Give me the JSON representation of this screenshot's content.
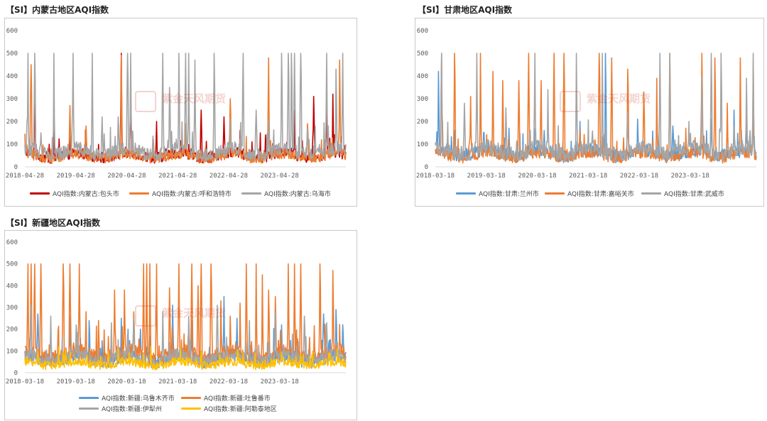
{
  "watermark": {
    "text": "紫金天风期货",
    "seal": "紫金"
  },
  "colors": {
    "red": "#c00000",
    "orange": "#ed7d31",
    "gray": "#a5a5a5",
    "blue": "#5b9bd5",
    "yellow": "#ffc000",
    "axis": "#d9d9d9"
  },
  "chart_data": [
    {
      "type": "line",
      "title": "【SI】内蒙古地区AQI指数",
      "ylim": [
        0,
        600
      ],
      "yticks": [
        "0",
        "100",
        "200",
        "300",
        "400",
        "500",
        "600"
      ],
      "xticks": [
        "2018-04-28",
        "2019-04-28",
        "2020-04-28",
        "2021-04-28",
        "2022-04-28",
        "2023-04-28"
      ],
      "x_range": [
        "2018-04-28",
        "2024-07-31"
      ],
      "grid": false,
      "legend_position": "bottom",
      "series": [
        {
          "name": "AQI指数:内蒙古:包头市",
          "color": "#c00000",
          "baseline": 55,
          "spikes": [
            [
              0.03,
              380
            ],
            [
              0.09,
              170
            ],
            [
              0.3,
              500
            ],
            [
              0.33,
              280
            ],
            [
              0.41,
              200
            ],
            [
              0.55,
              250
            ],
            [
              0.62,
              220
            ],
            [
              0.67,
              160
            ],
            [
              0.75,
              140
            ],
            [
              0.84,
              250
            ],
            [
              0.9,
              310
            ],
            [
              0.94,
              270
            ],
            [
              0.96,
              320
            ]
          ]
        },
        {
          "name": "AQI指数:内蒙古:呼和浩特市",
          "color": "#ed7d31",
          "baseline": 50,
          "spikes": [
            [
              0.02,
              450
            ],
            [
              0.14,
              270
            ],
            [
              0.19,
              180
            ],
            [
              0.3,
              490
            ],
            [
              0.4,
              120
            ],
            [
              0.5,
              190
            ],
            [
              0.64,
              300
            ],
            [
              0.76,
              480
            ],
            [
              0.88,
              190
            ],
            [
              0.98,
              470
            ]
          ]
        },
        {
          "name": "AQI指数:内蒙古:乌海市",
          "color": "#a5a5a5",
          "baseline": 70,
          "spikes": [
            [
              0.01,
              500
            ],
            [
              0.03,
              500
            ],
            [
              0.05,
              150
            ],
            [
              0.09,
              500
            ],
            [
              0.15,
              500
            ],
            [
              0.21,
              500
            ],
            [
              0.24,
              220
            ],
            [
              0.29,
              220
            ],
            [
              0.32,
              500
            ],
            [
              0.33,
              500
            ],
            [
              0.43,
              500
            ],
            [
              0.45,
              350
            ],
            [
              0.48,
              500
            ],
            [
              0.5,
              500
            ],
            [
              0.51,
              500
            ],
            [
              0.53,
              470
            ],
            [
              0.59,
              500
            ],
            [
              0.64,
              210
            ],
            [
              0.68,
              500
            ],
            [
              0.72,
              250
            ],
            [
              0.76,
              200
            ],
            [
              0.8,
              500
            ],
            [
              0.82,
              500
            ],
            [
              0.83,
              500
            ],
            [
              0.84,
              500
            ],
            [
              0.86,
              500
            ],
            [
              0.88,
              170
            ],
            [
              0.94,
              500
            ],
            [
              0.97,
              430
            ],
            [
              0.99,
              500
            ]
          ]
        }
      ]
    },
    {
      "type": "line",
      "title": "【SI】甘肃地区AQI指数",
      "ylim": [
        0,
        600
      ],
      "yticks": [
        "0",
        "100",
        "200",
        "300",
        "400",
        "500",
        "600"
      ],
      "xticks": [
        "2018-03-18",
        "2019-03-18",
        "2020-03-18",
        "2021-03-18",
        "2022-03-18",
        "2023-03-18"
      ],
      "x_range": [
        "2018-03-18",
        "2024-07-31"
      ],
      "grid": false,
      "legend_position": "bottom",
      "series": [
        {
          "name": "AQI指数:甘肃:兰州市",
          "color": "#5b9bd5",
          "baseline": 65,
          "spikes": [
            [
              0.01,
              420
            ],
            [
              0.06,
              160
            ],
            [
              0.15,
              150
            ],
            [
              0.23,
              170
            ],
            [
              0.34,
              160
            ],
            [
              0.45,
              200
            ],
            [
              0.53,
              500
            ],
            [
              0.63,
              210
            ],
            [
              0.74,
              180
            ],
            [
              0.86,
              210
            ],
            [
              0.93,
              250
            ],
            [
              0.97,
              190
            ],
            [
              0.99,
              180
            ]
          ]
        },
        {
          "name": "AQI指数:甘肃:嘉峪关市",
          "color": "#ed7d31",
          "baseline": 55,
          "spikes": [
            [
              0.02,
              500
            ],
            [
              0.06,
              500
            ],
            [
              0.11,
              310
            ],
            [
              0.14,
              500
            ],
            [
              0.18,
              420
            ],
            [
              0.21,
              380
            ],
            [
              0.26,
              380
            ],
            [
              0.29,
              500
            ],
            [
              0.33,
              380
            ],
            [
              0.37,
              500
            ],
            [
              0.4,
              500
            ],
            [
              0.45,
              160
            ],
            [
              0.51,
              500
            ],
            [
              0.55,
              480
            ],
            [
              0.6,
              430
            ],
            [
              0.65,
              330
            ],
            [
              0.69,
              390
            ],
            [
              0.73,
              500
            ],
            [
              0.78,
              170
            ],
            [
              0.83,
              500
            ],
            [
              0.87,
              480
            ],
            [
              0.91,
              280
            ],
            [
              0.95,
              480
            ],
            [
              0.99,
              460
            ]
          ]
        },
        {
          "name": "AQI指数:甘肃:武威市",
          "color": "#a5a5a5",
          "baseline": 75,
          "spikes": [
            [
              0.02,
              500
            ],
            [
              0.09,
              280
            ],
            [
              0.13,
              500
            ],
            [
              0.22,
              260
            ],
            [
              0.31,
              500
            ],
            [
              0.35,
              340
            ],
            [
              0.44,
              500
            ],
            [
              0.52,
              500
            ],
            [
              0.6,
              240
            ],
            [
              0.7,
              500
            ],
            [
              0.73,
              500
            ],
            [
              0.79,
              200
            ],
            [
              0.83,
              400
            ],
            [
              0.86,
              500
            ],
            [
              0.89,
              500
            ],
            [
              0.93,
              180
            ],
            [
              0.97,
              390
            ],
            [
              0.99,
              500
            ]
          ]
        }
      ]
    },
    {
      "type": "line",
      "title": "【SI】新疆地区AQI指数",
      "ylim": [
        0,
        600
      ],
      "yticks": [
        "0",
        "100",
        "200",
        "300",
        "400",
        "500",
        "600"
      ],
      "xticks": [
        "2018-03-18",
        "2019-03-18",
        "2020-03-18",
        "2021-03-18",
        "2022-03-18",
        "2023-03-18"
      ],
      "x_range": [
        "2018-03-18",
        "2024-07-31"
      ],
      "grid": false,
      "legend_position": "bottom",
      "series": [
        {
          "name": "AQI指数:新疆:乌鲁木齐市",
          "color": "#5b9bd5",
          "baseline": 70,
          "spikes": [
            [
              0.04,
              270
            ],
            [
              0.14,
              260
            ],
            [
              0.2,
              240
            ],
            [
              0.3,
              250
            ],
            [
              0.36,
              200
            ],
            [
              0.46,
              310
            ],
            [
              0.52,
              240
            ],
            [
              0.62,
              350
            ],
            [
              0.66,
              250
            ],
            [
              0.8,
              220
            ],
            [
              0.93,
              270
            ],
            [
              0.97,
              290
            ],
            [
              0.99,
              220
            ]
          ]
        },
        {
          "name": "AQI指数:新疆:吐鲁番市",
          "color": "#ed7d31",
          "baseline": 85,
          "spikes": [
            [
              0.01,
              500
            ],
            [
              0.02,
              500
            ],
            [
              0.03,
              500
            ],
            [
              0.05,
              500
            ],
            [
              0.12,
              500
            ],
            [
              0.14,
              500
            ],
            [
              0.17,
              500
            ],
            [
              0.19,
              280
            ],
            [
              0.23,
              240
            ],
            [
              0.28,
              380
            ],
            [
              0.31,
              380
            ],
            [
              0.34,
              280
            ],
            [
              0.37,
              500
            ],
            [
              0.38,
              500
            ],
            [
              0.39,
              500
            ],
            [
              0.41,
              500
            ],
            [
              0.45,
              390
            ],
            [
              0.48,
              500
            ],
            [
              0.52,
              500
            ],
            [
              0.54,
              400
            ],
            [
              0.55,
              500
            ],
            [
              0.58,
              500
            ],
            [
              0.61,
              330
            ],
            [
              0.64,
              260
            ],
            [
              0.67,
              320
            ],
            [
              0.69,
              500
            ],
            [
              0.72,
              500
            ],
            [
              0.74,
              450
            ],
            [
              0.76,
              380
            ],
            [
              0.78,
              350
            ],
            [
              0.82,
              500
            ],
            [
              0.84,
              500
            ],
            [
              0.86,
              500
            ],
            [
              0.92,
              500
            ],
            [
              0.96,
              470
            ]
          ]
        },
        {
          "name": "AQI指数:新疆:伊犁州",
          "color": "#a5a5a5",
          "baseline": 70,
          "spikes": [
            [
              0.02,
              310
            ],
            [
              0.08,
              260
            ],
            [
              0.16,
              220
            ],
            [
              0.27,
              230
            ],
            [
              0.34,
              250
            ],
            [
              0.43,
              280
            ],
            [
              0.51,
              260
            ],
            [
              0.6,
              310
            ],
            [
              0.7,
              240
            ],
            [
              0.78,
              280
            ],
            [
              0.87,
              260
            ],
            [
              0.94,
              230
            ]
          ]
        },
        {
          "name": "AQI指数:新疆:阿勒泰地区",
          "color": "#ffc000",
          "baseline": 45,
          "spikes": [
            [
              0.04,
              100
            ],
            [
              0.12,
              95
            ],
            [
              0.26,
              100
            ],
            [
              0.37,
              90
            ],
            [
              0.55,
              100
            ],
            [
              0.68,
              95
            ],
            [
              0.8,
              95
            ],
            [
              0.95,
              90
            ]
          ]
        }
      ]
    }
  ]
}
